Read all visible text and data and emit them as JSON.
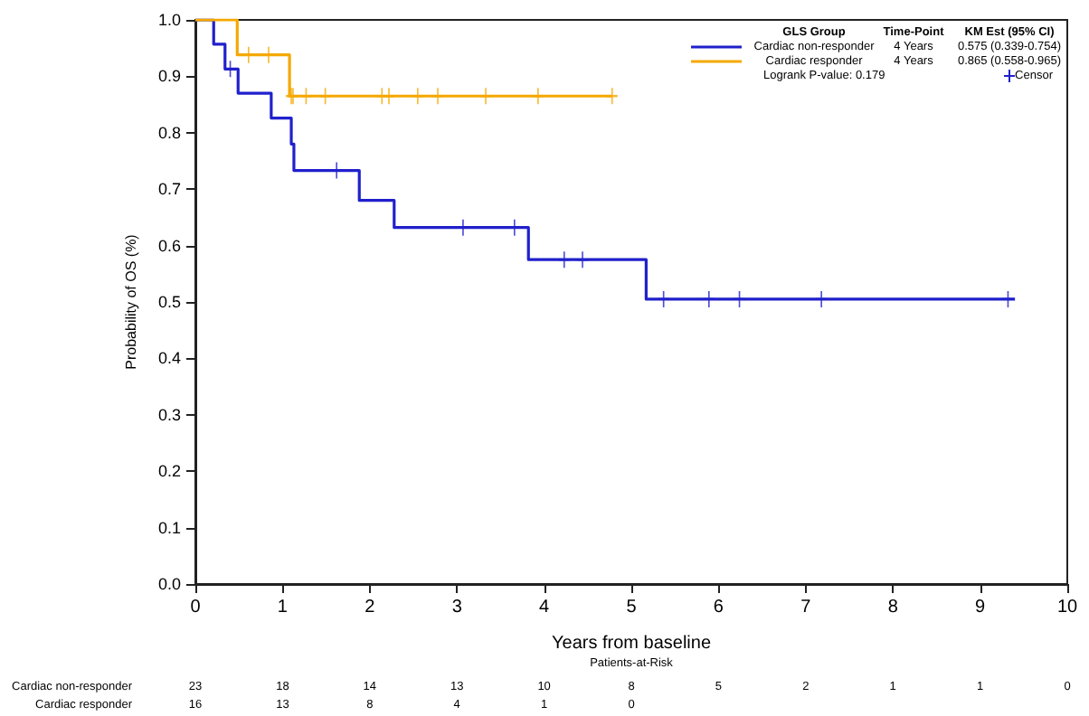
{
  "chart_data": {
    "type": "step",
    "xlabel": "Years from baseline",
    "ylabel": "Probability of OS (%)",
    "legend_title": "GLS Group",
    "legend": "top right",
    "grid": false,
    "xlim": [
      0,
      10
    ],
    "xticks": [
      0,
      1,
      2,
      3,
      4,
      5,
      6,
      7,
      8,
      9,
      10
    ],
    "ylim": [
      0,
      1
    ],
    "yticks": [
      {
        "value": 0,
        "label": "0.0"
      },
      {
        "value": 0.1,
        "label": "0.1"
      },
      {
        "value": 0.2,
        "label": "0.2"
      },
      {
        "value": 0.3,
        "label": "0.3"
      },
      {
        "value": 0.4,
        "label": "0.4"
      },
      {
        "value": 0.5,
        "label": "0.5"
      },
      {
        "value": 0.6,
        "label": "0.6"
      },
      {
        "value": 0.7,
        "label": "0.7"
      },
      {
        "value": 0.8,
        "label": "0.8"
      },
      {
        "value": 0.9,
        "label": "0.9"
      },
      {
        "value": 1,
        "label": "1.0"
      }
    ],
    "series": [
      {
        "name": "Cardiac non-responder",
        "color": "#2020cc",
        "x": [
          0,
          0.21,
          0.34,
          0.49,
          0.87,
          1.1,
          1.13,
          1.88,
          2.28,
          3.82,
          5.17,
          9.4
        ],
        "values": [
          1,
          0.957,
          0.913,
          0.87,
          0.826,
          0.78,
          0.733,
          0.68,
          0.632,
          0.575,
          0.505,
          0.505
        ]
      },
      {
        "name": "Cardiac responder",
        "color": "#f5a800",
        "x": [
          0,
          0.48,
          1.08,
          4.78
        ],
        "values": [
          1,
          0.938,
          0.865,
          0.865
        ]
      },
      {
        "name": "Censor",
        "type": "scatter",
        "marker": "cross",
        "x": [
          0.4,
          1.62,
          3.07,
          3.66,
          4.23,
          4.44,
          5.37,
          5.89,
          6.24,
          7.18,
          9.32,
          0.61,
          0.84,
          1.1,
          1.12,
          1.27,
          1.49,
          2.14,
          2.22,
          2.55,
          2.78,
          3.33,
          3.93,
          4.78
        ],
        "values": [
          0.913,
          0.733,
          0.632,
          0.632,
          0.575,
          0.575,
          0.505,
          0.505,
          0.505,
          0.505,
          0.505,
          0.938,
          0.938,
          0.865,
          0.865,
          0.865,
          0.865,
          0.865,
          0.865,
          0.865,
          0.865,
          0.865,
          0.865,
          0.865
        ],
        "colors": [
          "#2020cc",
          "#2020cc",
          "#2020cc",
          "#2020cc",
          "#2020cc",
          "#2020cc",
          "#2020cc",
          "#2020cc",
          "#2020cc",
          "#2020cc",
          "#2020cc",
          "#f5a800",
          "#f5a800",
          "#f5a800",
          "#f5a800",
          "#f5a800",
          "#f5a800",
          "#f5a800",
          "#f5a800",
          "#f5a800",
          "#f5a800",
          "#f5a800",
          "#f5a800",
          "#f5a800"
        ]
      }
    ],
    "annotations": [
      "Time-Point",
      "KM Est (95% CI)",
      "4 Years",
      "0.575 (0.339-0.754)",
      "4 Years",
      "0.865 (0.558-0.965)",
      "Logrank P-value: 0.179",
      "Patients-at-Risk",
      "23",
      "18",
      "14",
      "13",
      "10",
      "8",
      "5",
      "2",
      "1",
      "1",
      "0",
      "16",
      "13",
      "8",
      "4",
      "1",
      "0"
    ]
  }
}
